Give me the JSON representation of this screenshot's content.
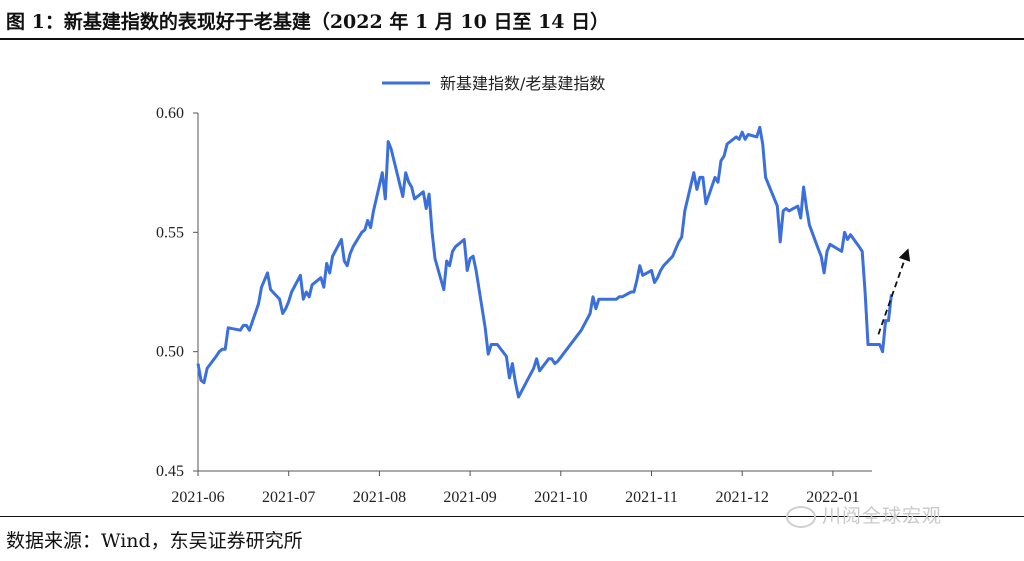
{
  "figure": {
    "title": "图 1：新基建指数的表现好于老基建（2022 年 1 月 10 日至 14 日）",
    "source": "数据来源：Wind，东吴证券研究所",
    "watermark": "川阅全球宏观"
  },
  "chart_data": {
    "type": "line",
    "title": "",
    "xlabel": "",
    "ylabel": "",
    "ylim": [
      0.45,
      0.6
    ],
    "yticks": [
      0.45,
      0.5,
      0.55,
      0.6
    ],
    "ytick_labels": [
      "0.45",
      "0.50",
      "0.55",
      "0.60"
    ],
    "xticks": [
      "2021-06",
      "2021-07",
      "2021-08",
      "2021-09",
      "2021-10",
      "2021-11",
      "2021-12",
      "2022-01"
    ],
    "grid": false,
    "legend": "top-center",
    "line_color": "#3a6fdc",
    "annotation": "dashed arrow pointing up-right at the end of the series",
    "series": [
      {
        "name": "新基建指数/老基建指数",
        "points": [
          [
            "2021-06-01",
            0.495
          ],
          [
            "2021-06-02",
            0.488
          ],
          [
            "2021-06-03",
            0.487
          ],
          [
            "2021-06-04",
            0.493
          ],
          [
            "2021-06-07",
            0.498
          ],
          [
            "2021-06-08",
            0.5
          ],
          [
            "2021-06-09",
            0.501
          ],
          [
            "2021-06-10",
            0.501
          ],
          [
            "2021-06-11",
            0.51
          ],
          [
            "2021-06-15",
            0.509
          ],
          [
            "2021-06-16",
            0.511
          ],
          [
            "2021-06-17",
            0.511
          ],
          [
            "2021-06-18",
            0.509
          ],
          [
            "2021-06-21",
            0.52
          ],
          [
            "2021-06-22",
            0.527
          ],
          [
            "2021-06-23",
            0.53
          ],
          [
            "2021-06-24",
            0.533
          ],
          [
            "2021-06-25",
            0.526
          ],
          [
            "2021-06-28",
            0.522
          ],
          [
            "2021-06-29",
            0.516
          ],
          [
            "2021-06-30",
            0.518
          ],
          [
            "2021-07-01",
            0.521
          ],
          [
            "2021-07-02",
            0.525
          ],
          [
            "2021-07-05",
            0.532
          ],
          [
            "2021-07-06",
            0.522
          ],
          [
            "2021-07-07",
            0.525
          ],
          [
            "2021-07-08",
            0.523
          ],
          [
            "2021-07-09",
            0.528
          ],
          [
            "2021-07-12",
            0.531
          ],
          [
            "2021-07-13",
            0.527
          ],
          [
            "2021-07-14",
            0.537
          ],
          [
            "2021-07-15",
            0.533
          ],
          [
            "2021-07-16",
            0.54
          ],
          [
            "2021-07-19",
            0.547
          ],
          [
            "2021-07-20",
            0.538
          ],
          [
            "2021-07-21",
            0.536
          ],
          [
            "2021-07-22",
            0.541
          ],
          [
            "2021-07-23",
            0.544
          ],
          [
            "2021-07-26",
            0.55
          ],
          [
            "2021-07-27",
            0.551
          ],
          [
            "2021-07-28",
            0.555
          ],
          [
            "2021-07-29",
            0.552
          ],
          [
            "2021-07-30",
            0.559
          ],
          [
            "2021-08-02",
            0.575
          ],
          [
            "2021-08-03",
            0.564
          ],
          [
            "2021-08-04",
            0.588
          ],
          [
            "2021-08-05",
            0.585
          ],
          [
            "2021-08-06",
            0.58
          ],
          [
            "2021-08-09",
            0.565
          ],
          [
            "2021-08-10",
            0.575
          ],
          [
            "2021-08-11",
            0.571
          ],
          [
            "2021-08-12",
            0.569
          ],
          [
            "2021-08-13",
            0.564
          ],
          [
            "2021-08-16",
            0.567
          ],
          [
            "2021-08-17",
            0.56
          ],
          [
            "2021-08-18",
            0.566
          ],
          [
            "2021-08-19",
            0.55
          ],
          [
            "2021-08-20",
            0.539
          ],
          [
            "2021-08-23",
            0.526
          ],
          [
            "2021-08-24",
            0.538
          ],
          [
            "2021-08-25",
            0.536
          ],
          [
            "2021-08-26",
            0.542
          ],
          [
            "2021-08-27",
            0.544
          ],
          [
            "2021-08-30",
            0.547
          ],
          [
            "2021-08-31",
            0.534
          ],
          [
            "2021-09-01",
            0.539
          ],
          [
            "2021-09-02",
            0.54
          ],
          [
            "2021-09-03",
            0.534
          ],
          [
            "2021-09-06",
            0.51
          ],
          [
            "2021-09-07",
            0.499
          ],
          [
            "2021-09-08",
            0.503
          ],
          [
            "2021-09-09",
            0.503
          ],
          [
            "2021-09-10",
            0.503
          ],
          [
            "2021-09-13",
            0.498
          ],
          [
            "2021-09-14",
            0.489
          ],
          [
            "2021-09-15",
            0.495
          ],
          [
            "2021-09-16",
            0.487
          ],
          [
            "2021-09-17",
            0.481
          ],
          [
            "2021-09-22",
            0.493
          ],
          [
            "2021-09-23",
            0.497
          ],
          [
            "2021-09-24",
            0.492
          ],
          [
            "2021-09-27",
            0.497
          ],
          [
            "2021-09-28",
            0.497
          ],
          [
            "2021-09-29",
            0.495
          ],
          [
            "2021-09-30",
            0.496
          ],
          [
            "2021-10-08",
            0.509
          ],
          [
            "2021-10-11",
            0.516
          ],
          [
            "2021-10-12",
            0.523
          ],
          [
            "2021-10-13",
            0.518
          ],
          [
            "2021-10-14",
            0.522
          ],
          [
            "2021-10-15",
            0.522
          ],
          [
            "2021-10-18",
            0.522
          ],
          [
            "2021-10-19",
            0.522
          ],
          [
            "2021-10-20",
            0.522
          ],
          [
            "2021-10-21",
            0.523
          ],
          [
            "2021-10-22",
            0.523
          ],
          [
            "2021-10-25",
            0.525
          ],
          [
            "2021-10-26",
            0.525
          ],
          [
            "2021-10-27",
            0.53
          ],
          [
            "2021-10-28",
            0.536
          ],
          [
            "2021-10-29",
            0.532
          ],
          [
            "2021-11-01",
            0.534
          ],
          [
            "2021-11-02",
            0.529
          ],
          [
            "2021-11-03",
            0.531
          ],
          [
            "2021-11-04",
            0.534
          ],
          [
            "2021-11-05",
            0.536
          ],
          [
            "2021-11-08",
            0.54
          ],
          [
            "2021-11-09",
            0.543
          ],
          [
            "2021-11-10",
            0.546
          ],
          [
            "2021-11-11",
            0.548
          ],
          [
            "2021-11-12",
            0.559
          ],
          [
            "2021-11-15",
            0.575
          ],
          [
            "2021-11-16",
            0.568
          ],
          [
            "2021-11-17",
            0.573
          ],
          [
            "2021-11-18",
            0.573
          ],
          [
            "2021-11-19",
            0.562
          ],
          [
            "2021-11-22",
            0.573
          ],
          [
            "2021-11-23",
            0.571
          ],
          [
            "2021-11-24",
            0.58
          ],
          [
            "2021-11-25",
            0.582
          ],
          [
            "2021-11-26",
            0.587
          ],
          [
            "2021-11-29",
            0.59
          ],
          [
            "2021-11-30",
            0.589
          ],
          [
            "2021-12-01",
            0.592
          ],
          [
            "2021-12-02",
            0.589
          ],
          [
            "2021-12-03",
            0.591
          ],
          [
            "2021-12-06",
            0.59
          ],
          [
            "2021-12-07",
            0.594
          ],
          [
            "2021-12-08",
            0.587
          ],
          [
            "2021-12-09",
            0.573
          ],
          [
            "2021-12-10",
            0.57
          ],
          [
            "2021-12-13",
            0.561
          ],
          [
            "2021-12-14",
            0.546
          ],
          [
            "2021-12-15",
            0.559
          ],
          [
            "2021-12-16",
            0.56
          ],
          [
            "2021-12-17",
            0.559
          ],
          [
            "2021-12-20",
            0.561
          ],
          [
            "2021-12-21",
            0.556
          ],
          [
            "2021-12-22",
            0.569
          ],
          [
            "2021-12-23",
            0.56
          ],
          [
            "2021-12-24",
            0.553
          ],
          [
            "2021-12-27",
            0.543
          ],
          [
            "2021-12-28",
            0.54
          ],
          [
            "2021-12-29",
            0.533
          ],
          [
            "2021-12-30",
            0.542
          ],
          [
            "2021-12-31",
            0.545
          ],
          [
            "2022-01-04",
            0.542
          ],
          [
            "2022-01-05",
            0.55
          ],
          [
            "2022-01-06",
            0.547
          ],
          [
            "2022-01-07",
            0.549
          ],
          [
            "2022-01-10",
            0.544
          ],
          [
            "2022-01-11",
            0.542
          ],
          [
            "2022-01-12",
            0.525
          ],
          [
            "2022-01-13",
            0.503
          ],
          [
            "2022-01-14",
            0.503
          ],
          [
            "2022-01-17",
            0.503
          ],
          [
            "2022-01-18",
            0.5
          ],
          [
            "2022-01-19",
            0.513
          ],
          [
            "2022-01-20",
            0.513
          ],
          [
            "2022-01-21",
            0.524
          ]
        ]
      }
    ]
  }
}
